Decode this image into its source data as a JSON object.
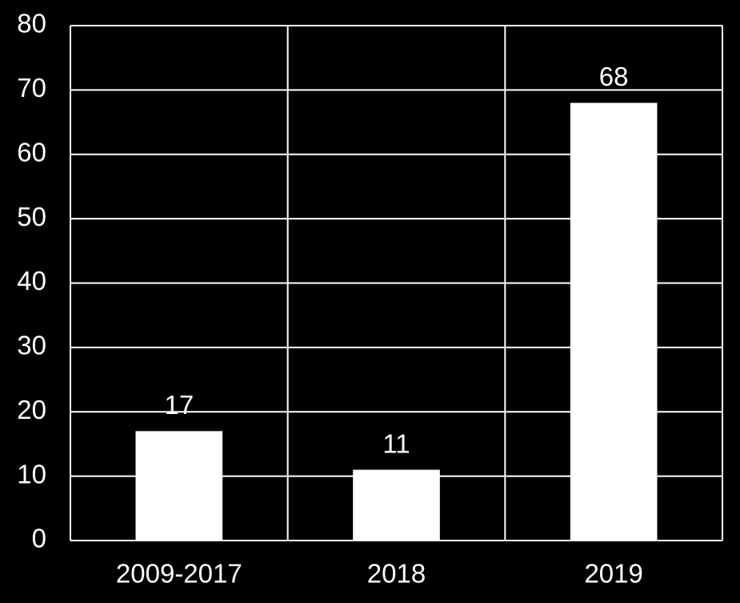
{
  "chart_data": {
    "type": "bar",
    "categories": [
      "2009-2017",
      "2018",
      "2019"
    ],
    "values": [
      17,
      11,
      68
    ],
    "color": "#ffffff",
    "ylim": [
      0,
      80
    ],
    "yticks": [
      0,
      10,
      20,
      30,
      40,
      50,
      60,
      70,
      80
    ],
    "grid": true
  }
}
